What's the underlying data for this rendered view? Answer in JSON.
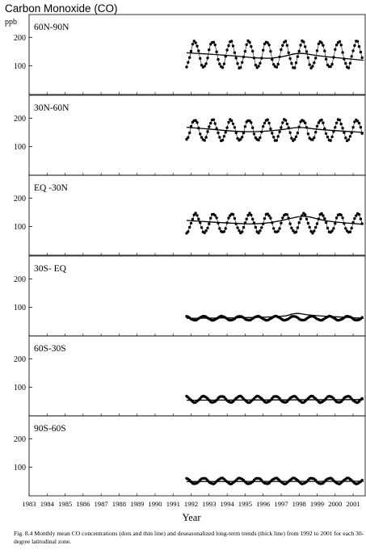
{
  "figure": {
    "title": "Carbon Monoxide (CO)",
    "unit": "ppb",
    "caption": "Fig. 8.4  Monthly mean CO concentrations (dots and thin line) and deseasonalized long-term trends (thick line) from 1992 to 2001 for each 30-degree latitudinal zone."
  },
  "chart_data": {
    "type": "line",
    "title": "Carbon Monoxide (CO)",
    "xlabel": "Year",
    "ylabel": "ppb",
    "xlim": [
      1983,
      2001.67
    ],
    "ylim": [
      0,
      280
    ],
    "x_ticks": [
      "1983",
      "1984",
      "1985",
      "1986",
      "1987",
      "1988",
      "1989",
      "1990",
      "1991",
      "1992",
      "1993",
      "1994",
      "1995",
      "1996",
      "1997",
      "1998",
      "1999",
      "2000",
      "2001"
    ],
    "y_ticks": [
      100,
      200
    ],
    "grid": false,
    "data_start": 1991.75,
    "data_end": 2001.58,
    "series_style": {
      "monthly": "dots and thin line",
      "trend": "thick line"
    },
    "panels": [
      {
        "label": "60N-90N",
        "monthly": {
          "mean": 140,
          "amplitude": 46,
          "peak_phase": 0.2
        },
        "trend": [
          [
            1991.75,
            146
          ],
          [
            1994,
            138
          ],
          [
            1996,
            125
          ],
          [
            1997,
            130
          ],
          [
            1998,
            148
          ],
          [
            1999,
            135
          ],
          [
            2001.58,
            120
          ]
        ]
      },
      {
        "label": "30N-60N",
        "monthly": {
          "mean": 158,
          "amplitude": 36,
          "peak_phase": 0.2
        },
        "trend": [
          [
            1991.75,
            168
          ],
          [
            1993,
            162
          ],
          [
            1995,
            150
          ],
          [
            1997,
            158
          ],
          [
            1998,
            170
          ],
          [
            1999,
            160
          ],
          [
            2001.58,
            150
          ]
        ]
      },
      {
        "label": "EQ -30N",
        "monthly": {
          "mean": 112,
          "amplitude": 33,
          "peak_phase": 0.25
        },
        "trend": [
          [
            1991.75,
            122
          ],
          [
            1994,
            112
          ],
          [
            1996,
            108
          ],
          [
            1997.5,
            128
          ],
          [
            1998.3,
            140
          ],
          [
            1999.5,
            118
          ],
          [
            2001.58,
            108
          ]
        ]
      },
      {
        "label": "30S- EQ",
        "monthly": {
          "mean": 62,
          "amplitude": 7,
          "peak_phase": 0.7
        },
        "trend": [
          [
            1991.75,
            62
          ],
          [
            1997,
            63
          ],
          [
            1997.8,
            82
          ],
          [
            1998.5,
            72
          ],
          [
            2001.58,
            62
          ]
        ]
      },
      {
        "label": "60S-30S",
        "monthly": {
          "mean": 58,
          "amplitude": 11,
          "peak_phase": 0.7
        },
        "trend": [
          [
            1991.75,
            55
          ],
          [
            2001.58,
            57
          ]
        ]
      },
      {
        "label": "90S-60S",
        "monthly": {
          "mean": 52,
          "amplitude": 10,
          "peak_phase": 0.7
        },
        "trend": [
          [
            1991.75,
            50
          ],
          [
            2001.58,
            51
          ]
        ]
      }
    ]
  }
}
